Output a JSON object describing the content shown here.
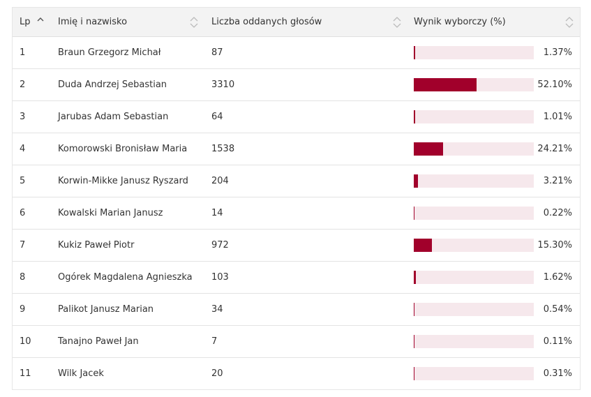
{
  "table": {
    "headers": {
      "lp": "Lp",
      "name": "Imię i nazwisko",
      "votes": "Liczba oddanych głosów",
      "result": "Wynik wyborczy (%)"
    },
    "colors": {
      "bar_fill": "#a1002b",
      "bar_track": "#f6e8ec",
      "header_bg": "#f3f3f3"
    },
    "rows": [
      {
        "lp": "1",
        "name": "Braun Grzegorz Michał",
        "votes": "87",
        "result": "1.37%",
        "pct": 1.37
      },
      {
        "lp": "2",
        "name": "Duda Andrzej Sebastian",
        "votes": "3310",
        "result": "52.10%",
        "pct": 52.1
      },
      {
        "lp": "3",
        "name": "Jarubas Adam Sebastian",
        "votes": "64",
        "result": "1.01%",
        "pct": 1.01
      },
      {
        "lp": "4",
        "name": "Komorowski Bronisław Maria",
        "votes": "1538",
        "result": "24.21%",
        "pct": 24.21
      },
      {
        "lp": "5",
        "name": "Korwin-Mikke Janusz Ryszard",
        "votes": "204",
        "result": "3.21%",
        "pct": 3.21
      },
      {
        "lp": "6",
        "name": "Kowalski Marian Janusz",
        "votes": "14",
        "result": "0.22%",
        "pct": 0.22
      },
      {
        "lp": "7",
        "name": "Kukiz Paweł Piotr",
        "votes": "972",
        "result": "15.30%",
        "pct": 15.3
      },
      {
        "lp": "8",
        "name": "Ogórek Magdalena Agnieszka",
        "votes": "103",
        "result": "1.62%",
        "pct": 1.62
      },
      {
        "lp": "9",
        "name": "Palikot Janusz Marian",
        "votes": "34",
        "result": "0.54%",
        "pct": 0.54
      },
      {
        "lp": "10",
        "name": "Tanajno Paweł Jan",
        "votes": "7",
        "result": "0.11%",
        "pct": 0.11
      },
      {
        "lp": "11",
        "name": "Wilk Jacek",
        "votes": "20",
        "result": "0.31%",
        "pct": 0.31
      }
    ]
  }
}
